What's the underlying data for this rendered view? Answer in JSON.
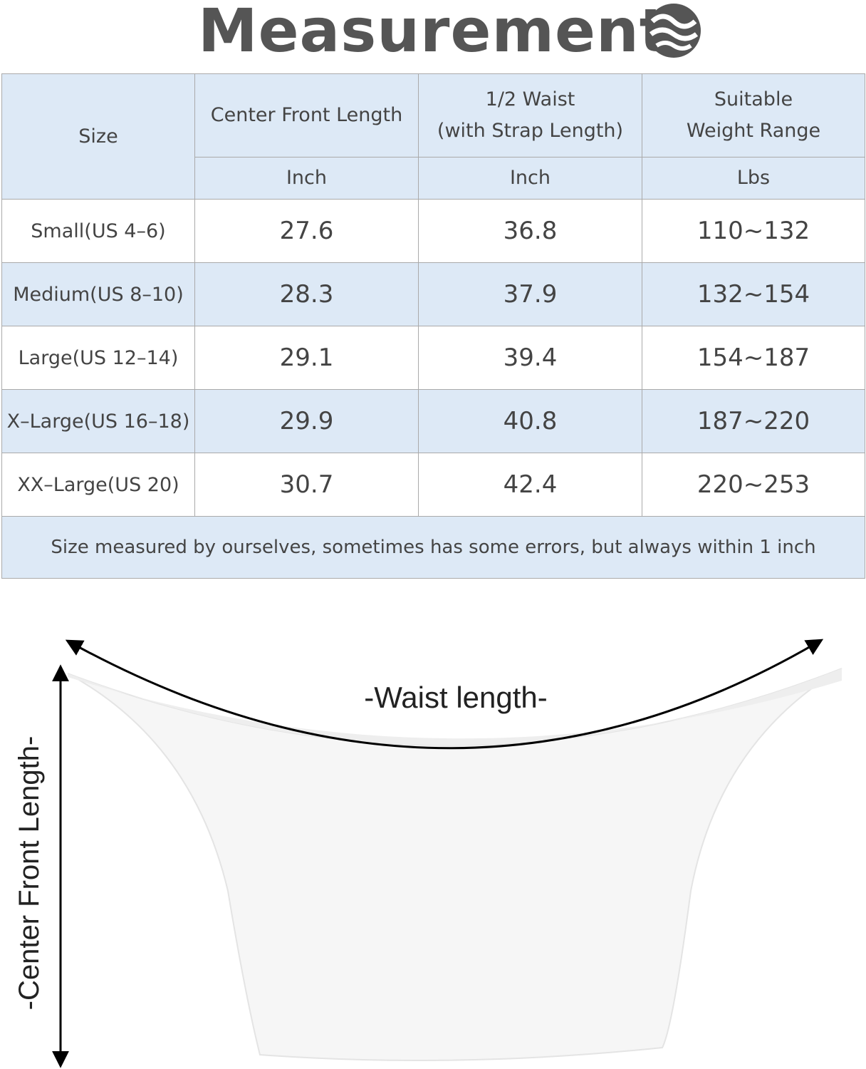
{
  "header": {
    "title": "Measurement"
  },
  "table": {
    "columns": [
      "Size",
      "Center Front Length",
      [
        "1/2 Waist",
        "(with Strap Length)"
      ],
      [
        "Suitable",
        "Weight Range"
      ]
    ],
    "units": [
      "Inch",
      "Inch",
      "Lbs"
    ],
    "rows": [
      [
        "Small(US 4–6)",
        27.6,
        36.8,
        "110~132"
      ],
      [
        "Medium(US 8–10)",
        28.3,
        37.9,
        "132~154"
      ],
      [
        "Large(US 12–14)",
        29.1,
        39.4,
        "154~187"
      ],
      [
        "X–Large(US 16–18)",
        29.9,
        40.8,
        "187~220"
      ],
      [
        "XX–Large(US 20)",
        30.7,
        42.4,
        "220~253"
      ]
    ],
    "note": "Size measured by ourselves, sometimes has some errors, but always within 1 inch"
  },
  "diagram": {
    "waist_label": "-Waist length-",
    "length_label": "-Center Front Length-"
  }
}
